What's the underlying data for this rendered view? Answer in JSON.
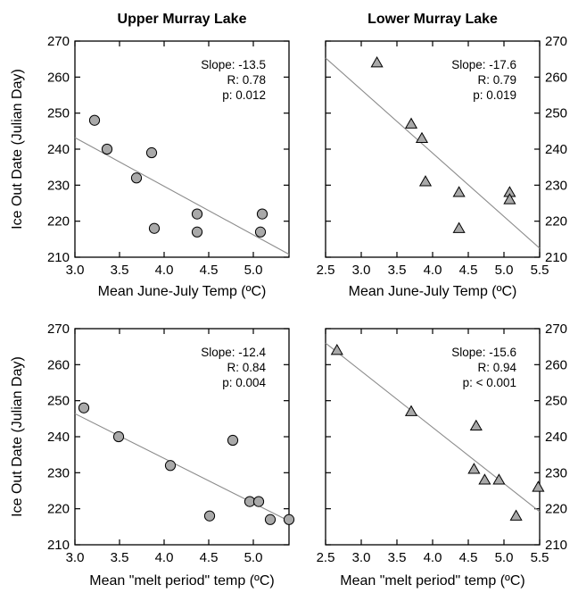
{
  "chart_data": [
    {
      "type": "scatter",
      "title": "Upper Murray Lake",
      "xlabel": "Mean June-July Temp (ºC)",
      "ylabel": "Ice Out Date (Julian Day)",
      "xlim": [
        3.0,
        5.4
      ],
      "ylim": [
        210,
        270
      ],
      "xticks": [
        "3.0",
        "3.5",
        "4.0",
        "4.5",
        "5.0"
      ],
      "yticks": [
        "210",
        "220",
        "230",
        "240",
        "250",
        "260",
        "270"
      ],
      "marker": "circle",
      "points": [
        {
          "x": 3.22,
          "y": 248
        },
        {
          "x": 3.36,
          "y": 240
        },
        {
          "x": 3.69,
          "y": 232
        },
        {
          "x": 3.86,
          "y": 239
        },
        {
          "x": 3.89,
          "y": 218
        },
        {
          "x": 4.37,
          "y": 222
        },
        {
          "x": 4.37,
          "y": 217
        },
        {
          "x": 5.08,
          "y": 217
        },
        {
          "x": 5.1,
          "y": 222
        }
      ],
      "fit_line": [
        {
          "x": 3.0,
          "y": 243.2
        },
        {
          "x": 5.4,
          "y": 210.8
        }
      ],
      "stats": {
        "slope": "Slope: -13.5",
        "r": "R:  0.78",
        "p": "p: 0.012"
      }
    },
    {
      "type": "scatter",
      "title": "Lower Murray Lake",
      "xlabel": "Mean June-July Temp (ºC)",
      "ylabel": "",
      "xlim": [
        2.5,
        5.5
      ],
      "ylim": [
        210,
        270
      ],
      "xticks": [
        "2.5",
        "3.0",
        "3.5",
        "4.0",
        "4.5",
        "5.0",
        "5.5"
      ],
      "yticks": [
        "210",
        "220",
        "230",
        "240",
        "250",
        "260",
        "270"
      ],
      "marker": "triangle",
      "points": [
        {
          "x": 3.22,
          "y": 264
        },
        {
          "x": 3.7,
          "y": 247
        },
        {
          "x": 3.85,
          "y": 243
        },
        {
          "x": 3.9,
          "y": 231
        },
        {
          "x": 4.37,
          "y": 228
        },
        {
          "x": 4.37,
          "y": 218
        },
        {
          "x": 5.08,
          "y": 228
        },
        {
          "x": 5.08,
          "y": 226
        }
      ],
      "fit_line": [
        {
          "x": 2.5,
          "y": 265.3
        },
        {
          "x": 5.5,
          "y": 212.5
        }
      ],
      "stats": {
        "slope": "Slope: -17.6",
        "r": "R:  0.79",
        "p": "p: 0.019"
      }
    },
    {
      "type": "scatter",
      "title": "",
      "xlabel": "Mean \"melt period\" temp (ºC)",
      "ylabel": "Ice Out Date (Julian Day)",
      "xlim": [
        3.0,
        5.4
      ],
      "ylim": [
        210,
        270
      ],
      "xticks": [
        "3.0",
        "3.5",
        "4.0",
        "4.5",
        "5.0"
      ],
      "yticks": [
        "210",
        "220",
        "230",
        "240",
        "250",
        "260",
        "270"
      ],
      "marker": "circle",
      "points": [
        {
          "x": 3.1,
          "y": 248
        },
        {
          "x": 3.49,
          "y": 240
        },
        {
          "x": 4.07,
          "y": 232
        },
        {
          "x": 4.51,
          "y": 218
        },
        {
          "x": 4.77,
          "y": 239
        },
        {
          "x": 4.96,
          "y": 222
        },
        {
          "x": 5.06,
          "y": 222
        },
        {
          "x": 5.19,
          "y": 217
        },
        {
          "x": 5.4,
          "y": 217
        }
      ],
      "fit_line": [
        {
          "x": 3.0,
          "y": 246.4
        },
        {
          "x": 5.4,
          "y": 216.6
        }
      ],
      "stats": {
        "slope": "Slope: -12.4",
        "r": "R:  0.84",
        "p": "p: 0.004"
      }
    },
    {
      "type": "scatter",
      "title": "",
      "xlabel": "Mean \"melt period\" temp (ºC)",
      "ylabel": "",
      "xlim": [
        2.5,
        5.5
      ],
      "ylim": [
        210,
        270
      ],
      "xticks": [
        "2.5",
        "3.0",
        "3.5",
        "4.0",
        "4.5",
        "5.0",
        "5.5"
      ],
      "yticks": [
        "210",
        "220",
        "230",
        "240",
        "250",
        "260",
        "270"
      ],
      "marker": "triangle",
      "points": [
        {
          "x": 2.66,
          "y": 264
        },
        {
          "x": 3.7,
          "y": 247
        },
        {
          "x": 4.58,
          "y": 231
        },
        {
          "x": 4.61,
          "y": 243
        },
        {
          "x": 4.73,
          "y": 228
        },
        {
          "x": 4.93,
          "y": 228
        },
        {
          "x": 5.17,
          "y": 218
        },
        {
          "x": 5.48,
          "y": 226
        }
      ],
      "fit_line": [
        {
          "x": 2.5,
          "y": 266.0
        },
        {
          "x": 5.5,
          "y": 219.2
        }
      ],
      "stats": {
        "slope": "Slope: -15.6",
        "r": "R:  0.94",
        "p": "p: < 0.001"
      }
    }
  ]
}
